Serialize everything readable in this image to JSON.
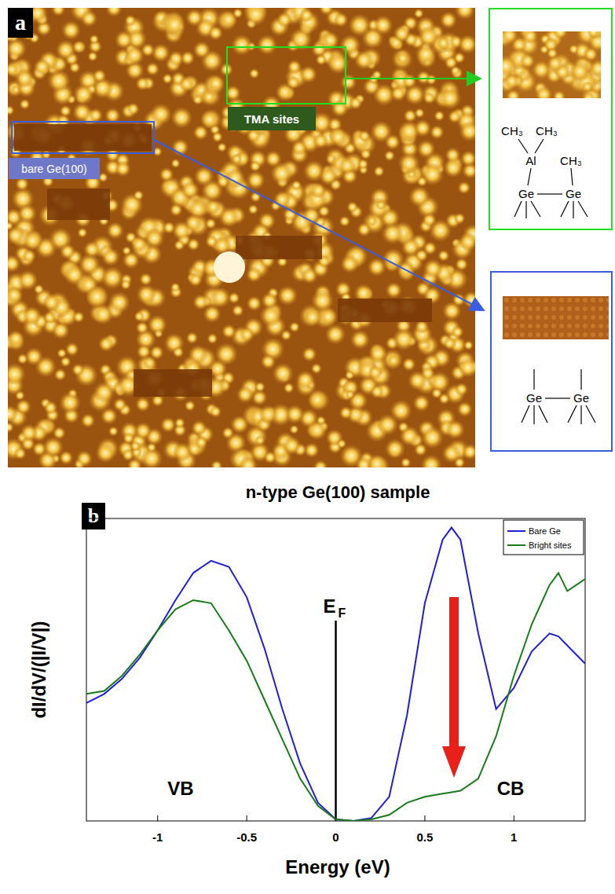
{
  "panel_a": {
    "label": "a",
    "tma_label": "TMA sites",
    "bare_label": "bare Ge(100)",
    "tma_structure": {
      "methyls": [
        "CH₃",
        "CH₃",
        "CH₃"
      ],
      "metal": "Al",
      "atoms": [
        "Ge",
        "Ge"
      ]
    },
    "bare_structure": {
      "atoms": [
        "Ge",
        "Ge"
      ]
    }
  },
  "chart_data": {
    "type": "line",
    "panel_label": "b",
    "title": "n-type Ge(100) sample",
    "x_label": "Energy (eV)",
    "y_label": "dI/dV/(|I/V|)",
    "x": [
      -1.4,
      -1.3,
      -1.2,
      -1.1,
      -1.0,
      -0.9,
      -0.8,
      -0.7,
      -0.6,
      -0.5,
      -0.4,
      -0.3,
      -0.2,
      -0.1,
      0,
      0.1,
      0.2,
      0.3,
      0.4,
      0.5,
      0.6,
      0.65,
      0.7,
      0.8,
      0.9,
      1.0,
      1.1,
      1.2,
      1.25,
      1.3,
      1.4
    ],
    "series": [
      {
        "name": "Bare Ge",
        "color": "#1f1fd6",
        "values": [
          0.39,
          0.42,
          0.47,
          0.54,
          0.63,
          0.73,
          0.82,
          0.86,
          0.84,
          0.74,
          0.57,
          0.37,
          0.19,
          0.06,
          0.005,
          0.0,
          0.01,
          0.08,
          0.35,
          0.72,
          0.93,
          0.97,
          0.93,
          0.62,
          0.37,
          0.44,
          0.56,
          0.62,
          0.61,
          0.58,
          0.52
        ]
      },
      {
        "name": "Bright sites",
        "color": "#1a7a1a",
        "values": [
          0.42,
          0.43,
          0.48,
          0.55,
          0.63,
          0.7,
          0.73,
          0.72,
          0.63,
          0.53,
          0.4,
          0.27,
          0.14,
          0.05,
          0.005,
          0.0,
          0.005,
          0.02,
          0.06,
          0.08,
          0.09,
          0.095,
          0.1,
          0.14,
          0.28,
          0.48,
          0.65,
          0.78,
          0.82,
          0.76,
          0.8
        ]
      }
    ],
    "xlim": [
      -1.4,
      1.4
    ],
    "xticks": [
      -1,
      -0.5,
      0,
      0.5,
      1
    ],
    "ylim": [
      0,
      1
    ],
    "tick_labels": "x",
    "legend": "upper right",
    "grid": false,
    "fermi_level": {
      "x": 0,
      "label": "E",
      "subscript": "F"
    },
    "annotations": [
      "VB",
      "CB"
    ]
  }
}
